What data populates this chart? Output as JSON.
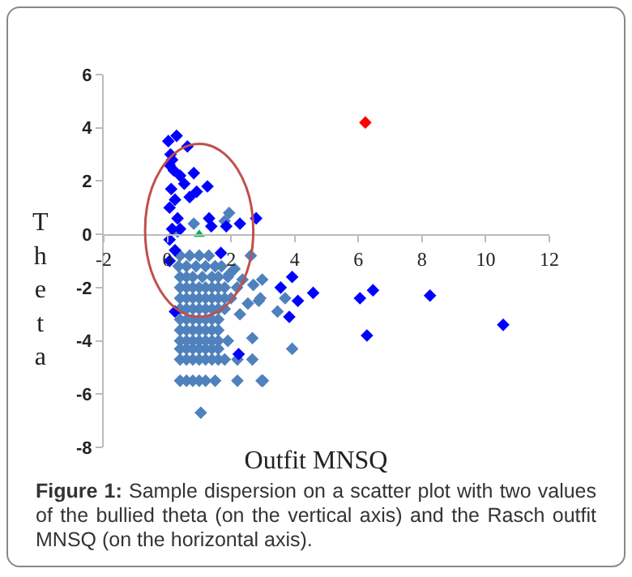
{
  "chart_data": {
    "type": "scatter",
    "xlabel": "Outfit MNSQ",
    "ylabel": "Theta",
    "xlim": [
      -2,
      12
    ],
    "ylim": [
      -8,
      6
    ],
    "xticks": [
      -2,
      0,
      2,
      4,
      6,
      8,
      10,
      12
    ],
    "yticks": [
      -8,
      -6,
      -4,
      -2,
      0,
      2,
      4,
      6
    ],
    "grid": false,
    "marker": "diamond",
    "annotations": [
      "Figure 1: Sample dispersion on a scatter plot with two values of the bullied theta (on the vertical axis) and the Rasch outfit MNSQ (on the horizontal axis)."
    ],
    "series": [
      {
        "color": "#4f81bd",
        "x": [
          0.4,
          0.7,
          1.0,
          1.3,
          0.35,
          0.6,
          0.9,
          1.2,
          1.5,
          1.7,
          0.4,
          0.6,
          0.8,
          1.1,
          1.4,
          1.6,
          1.9,
          0.4,
          0.6,
          0.8,
          1.0,
          1.2,
          1.4,
          1.6,
          1.8,
          0.4,
          0.6,
          0.8,
          1.0,
          1.2,
          1.4,
          1.6,
          1.8,
          2.0,
          0.4,
          0.6,
          0.8,
          1.0,
          1.2,
          1.4,
          1.6,
          1.8,
          0.4,
          0.6,
          0.8,
          1.0,
          1.2,
          1.4,
          1.6,
          0.4,
          0.6,
          0.8,
          1.0,
          1.2,
          1.4,
          1.6,
          0.4,
          0.6,
          0.8,
          1.0,
          1.2,
          1.4,
          1.6,
          1.9,
          0.4,
          0.6,
          0.8,
          1.0,
          1.2,
          1.4,
          1.6,
          0.4,
          0.6,
          0.8,
          1.0,
          1.2,
          1.4,
          1.6,
          1.8,
          2.2,
          0.4,
          0.6,
          0.8,
          1.0,
          1.2,
          1.5,
          2.2,
          3.0,
          1.05,
          2.62,
          0.32,
          0.83,
          1.94,
          1.8,
          2.11,
          2.36,
          2.7,
          2.53,
          2.28,
          2.87,
          2.67,
          2.67,
          2.19,
          1.94,
          2.98,
          2.92,
          3.7,
          3.46,
          3.92,
          2.96
        ],
        "values": [
          -0.8,
          -0.8,
          -0.8,
          -0.8,
          -1.2,
          -1.2,
          -1.2,
          -1.2,
          -1.2,
          -1.2,
          -1.6,
          -1.6,
          -1.6,
          -1.6,
          -1.6,
          -1.6,
          -1.6,
          -2.0,
          -2.0,
          -2.0,
          -2.0,
          -2.0,
          -2.0,
          -2.0,
          -2.0,
          -2.4,
          -2.4,
          -2.4,
          -2.4,
          -2.4,
          -2.4,
          -2.4,
          -2.4,
          -2.4,
          -2.8,
          -2.8,
          -2.8,
          -2.8,
          -2.8,
          -2.8,
          -2.8,
          -2.8,
          -3.2,
          -3.2,
          -3.2,
          -3.2,
          -3.2,
          -3.2,
          -3.2,
          -3.6,
          -3.6,
          -3.6,
          -3.6,
          -3.6,
          -3.6,
          -3.6,
          -4.0,
          -4.0,
          -4.0,
          -4.0,
          -4.0,
          -4.0,
          -4.0,
          -4.0,
          -4.3,
          -4.3,
          -4.3,
          -4.3,
          -4.3,
          -4.3,
          -4.3,
          -4.7,
          -4.7,
          -4.7,
          -4.7,
          -4.7,
          -4.7,
          -4.7,
          -4.7,
          -4.7,
          -5.5,
          -5.5,
          -5.5,
          -5.5,
          -5.5,
          -5.5,
          -5.5,
          -5.5,
          -6.7,
          -0.8,
          0.1,
          0.4,
          0.8,
          0.5,
          -1.3,
          -1.7,
          -1.9,
          -2.6,
          -3.0,
          -2.5,
          -3.9,
          -4.7,
          -2.0,
          -1.5,
          -1.7,
          -2.4,
          -2.4,
          -2.9,
          -4.3,
          -5.5
        ]
      },
      {
        "color": "#0000ff",
        "x": [
          0.03,
          0.29,
          0.63,
          0.1,
          0.15,
          0.07,
          0.2,
          0.83,
          0.4,
          0.53,
          1.26,
          0.92,
          0.7,
          0.12,
          0.24,
          0.07,
          0.32,
          0.15,
          0.4,
          0.07,
          0.24,
          0.07,
          1.31,
          1.38,
          1.8,
          1.85,
          2.28,
          2.79,
          0.24,
          1.68,
          2.24,
          3.92,
          3.56,
          4.1,
          4.58,
          3.83,
          6.05,
          6.46,
          8.25,
          6.27,
          10.55
        ],
        "values": [
          3.5,
          3.7,
          3.3,
          3.0,
          2.8,
          2.6,
          2.4,
          2.3,
          2.2,
          1.9,
          1.8,
          1.6,
          1.4,
          1.7,
          1.3,
          1.0,
          0.6,
          0.2,
          0.2,
          -0.2,
          -0.6,
          -1.0,
          0.6,
          0.3,
          null,
          0.3,
          0.4,
          0.6,
          -2.9,
          -0.7,
          -4.5,
          -1.6,
          -2.0,
          -2.5,
          -2.2,
          -3.1,
          -2.4,
          -2.1,
          -2.3,
          -3.8,
          -3.4
        ]
      },
      {
        "color": "#ff0000",
        "x": [
          6.22
        ],
        "values": [
          4.2
        ]
      },
      {
        "color": "#00b050",
        "marker": "triangle",
        "x": [
          1.0
        ],
        "values": [
          0.0
        ]
      }
    ]
  }
}
